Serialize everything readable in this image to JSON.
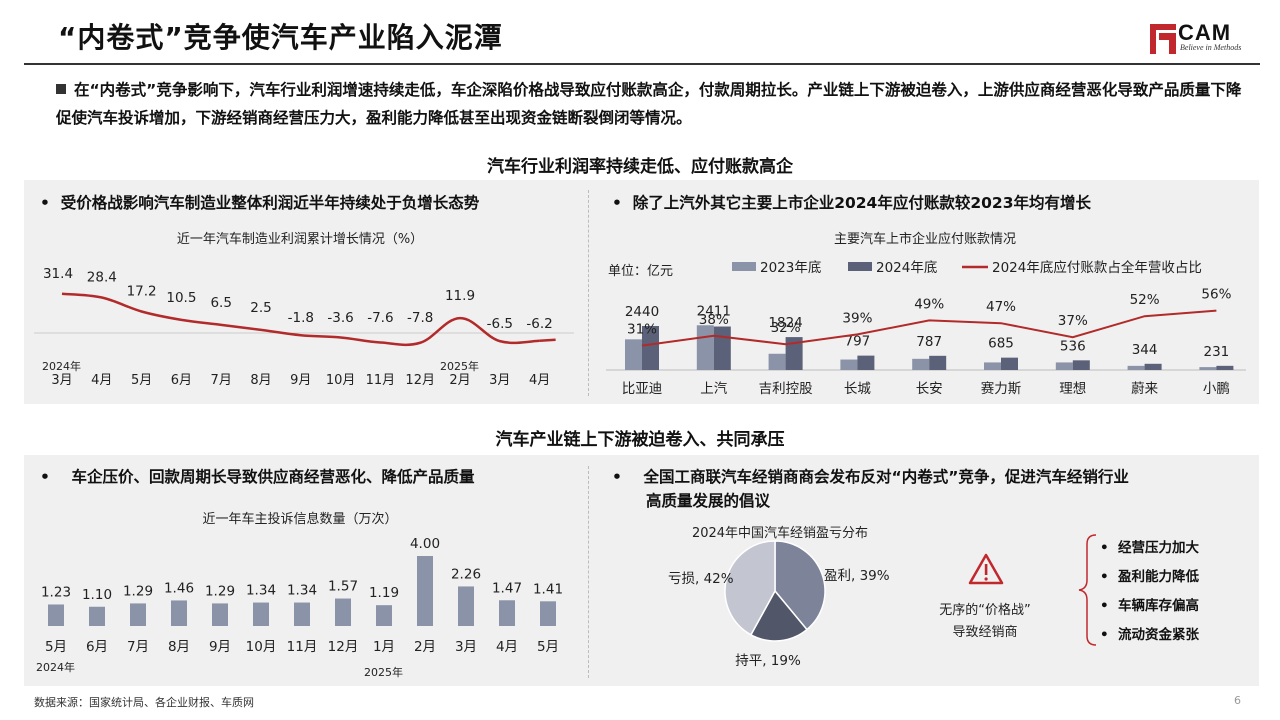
{
  "header": {
    "title": "“内卷式”竞争使汽车产业陷入泥潭",
    "logo_text": "CAM",
    "logo_tagline": "Believe in Methods"
  },
  "intro": "在“内卷式”竞争影响下，汽车行业利润增速持续走低，车企深陷价格战导致应付账款高企，付款周期拉长。产业链上下游被迫卷入，上游供应商经营恶化导致产品质量下降促使汽车投诉增加，下游经销商经营压力大，盈利能力降低甚至出现资金链断裂倒闭等情况。",
  "section1": {
    "title": "汽车行业利润率持续走低、应付账款高企",
    "left_point": "受价格战影响汽车制造业整体利润近半年持续处于负增长态势",
    "right_point": "除了上汽外其它主要上市企业2024年应付账款较2023年均有增长"
  },
  "section2": {
    "title": "汽车产业链上下游被迫卷入、共同承压",
    "left_point": "车企压价、回款周期长导致供应商经营恶化、降低产品质量",
    "right_point_line1": "全国工商联汽车经销商商会发布反对“内卷式”竞争，促进汽车经销行业",
    "right_point_line2": "高质量发展的倡议",
    "warning_line1": "无序的“价格战”",
    "warning_line2": "导致经销商",
    "effects": [
      "经营压力加大",
      "盈利能力降低",
      "车辆库存偏高",
      "流动资金紧张"
    ]
  },
  "footer": {
    "source": "数据来源：国家统计局、各企业财报、车质网",
    "page": "6"
  },
  "chart_data": [
    {
      "type": "line",
      "title": "近一年汽车制造业利润累计增长情况（%）",
      "categories": [
        "3月",
        "4月",
        "5月",
        "6月",
        "7月",
        "8月",
        "9月",
        "10月",
        "11月",
        "12月",
        "2月",
        "3月",
        "4月"
      ],
      "year_labels": [
        {
          "index": 0,
          "text": "2024年"
        },
        {
          "index": 10,
          "text": "2025年"
        }
      ],
      "values": [
        31.4,
        28.4,
        17.2,
        10.5,
        6.5,
        2.5,
        -1.8,
        -3.6,
        -7.6,
        -7.8,
        11.9,
        -6.5,
        -6.2
      ],
      "value_labels": [
        "31.4",
        "28.4",
        "17.2",
        "10.5",
        "6.5",
        "2.5",
        "-1.8",
        "-3.6",
        "-7.6",
        "-7.8",
        "11.9",
        "-6.5",
        "-6.2"
      ],
      "color": "#b22a2a"
    },
    {
      "type": "bar",
      "title": "主要汽车上市企业应付账款情况",
      "unit_label": "单位：亿元",
      "categories": [
        "比亚迪",
        "上汽",
        "吉利控股",
        "长城",
        "长安",
        "赛力斯",
        "理想",
        "蔚来",
        "小鹏"
      ],
      "series": [
        {
          "name": "2023年底",
          "color": "#8a93a8",
          "values": [
            1700,
            2480,
            900,
            580,
            620,
            420,
            420,
            230,
            160
          ]
        },
        {
          "name": "2024年底",
          "color": "#5b6178",
          "values": [
            2440,
            2411,
            1824,
            797,
            787,
            685,
            536,
            344,
            231
          ]
        }
      ],
      "bar_labels": [
        "2440",
        "2411",
        "1824",
        "797",
        "787",
        "685",
        "536",
        "344",
        "231"
      ],
      "line_series": {
        "name": "2024年底应付账款占全年营收占比",
        "color": "#b22a2a",
        "values": [
          31,
          38,
          32,
          39,
          49,
          47,
          37,
          52,
          56
        ],
        "labels": [
          "31%",
          "38%",
          "32%",
          "39%",
          "49%",
          "47%",
          "37%",
          "52%",
          "56%"
        ]
      }
    },
    {
      "type": "bar",
      "title": "近一年车主投诉信息数量（万次）",
      "categories": [
        "5月",
        "6月",
        "7月",
        "8月",
        "9月",
        "10月",
        "11月",
        "12月",
        "1月",
        "2月",
        "3月",
        "4月",
        "5月"
      ],
      "year_labels": [
        {
          "index": 0,
          "text": "2024年"
        },
        {
          "index": 8,
          "text": "2025年"
        }
      ],
      "values": [
        1.23,
        1.1,
        1.29,
        1.46,
        1.29,
        1.34,
        1.34,
        1.57,
        1.19,
        4.0,
        2.26,
        1.47,
        1.41
      ],
      "value_labels": [
        "1.23",
        "1.10",
        "1.29",
        "1.46",
        "1.29",
        "1.34",
        "1.34",
        "1.57",
        "1.19",
        "4.00",
        "2.26",
        "1.47",
        "1.41"
      ],
      "color": "#8a93a8"
    },
    {
      "type": "pie",
      "title": "2024年中国汽车经销盈亏分布",
      "slices": [
        {
          "label": "盈利, 39%",
          "value": 39,
          "color": "#7d8499"
        },
        {
          "label": "持平, 19%",
          "value": 19,
          "color": "#525669"
        },
        {
          "label": "亏损, 42%",
          "value": 42,
          "color": "#c3c6d0"
        }
      ]
    }
  ]
}
